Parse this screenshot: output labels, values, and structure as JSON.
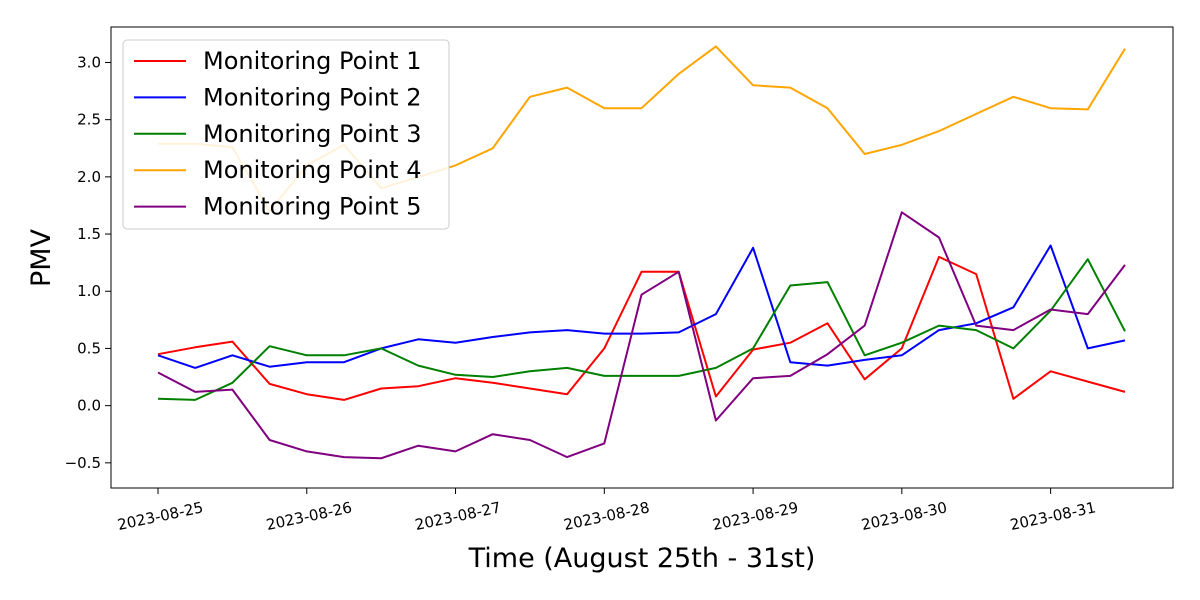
{
  "chart_data": {
    "type": "line",
    "title": "",
    "xlabel": "Time (August 25th - 31st)",
    "ylabel": "PMV",
    "x_start": "2023-08-25",
    "x_end": "2023-08-31 12:00",
    "x_ticks": [
      "2023-08-25",
      "2023-08-26",
      "2023-08-27",
      "2023-08-28",
      "2023-08-29",
      "2023-08-30",
      "2023-08-31"
    ],
    "ylim": [
      -0.72,
      3.31
    ],
    "y_ticks": [
      "−0.5",
      "0.0",
      "0.5",
      "1.0",
      "1.5",
      "2.0",
      "2.5",
      "3.0"
    ],
    "grid": false,
    "legend_position": "upper-left",
    "x": [
      "2023-08-25 00:00",
      "2023-08-25 06:00",
      "2023-08-25 12:00",
      "2023-08-25 18:00",
      "2023-08-26 00:00",
      "2023-08-26 06:00",
      "2023-08-26 12:00",
      "2023-08-26 18:00",
      "2023-08-27 00:00",
      "2023-08-27 06:00",
      "2023-08-27 12:00",
      "2023-08-27 18:00",
      "2023-08-28 00:00",
      "2023-08-28 06:00",
      "2023-08-28 12:00",
      "2023-08-28 18:00",
      "2023-08-29 00:00",
      "2023-08-29 06:00",
      "2023-08-29 12:00",
      "2023-08-29 18:00",
      "2023-08-30 00:00",
      "2023-08-30 06:00",
      "2023-08-30 12:00",
      "2023-08-30 18:00",
      "2023-08-31 00:00",
      "2023-08-31 06:00",
      "2023-08-31 12:00"
    ],
    "series": [
      {
        "name": "Monitoring Point 1",
        "color": "#ff0000",
        "values": [
          0.45,
          0.51,
          0.56,
          0.19,
          0.1,
          0.05,
          0.15,
          0.17,
          0.24,
          0.2,
          0.15,
          0.1,
          0.5,
          1.17,
          1.17,
          0.08,
          0.49,
          0.55,
          0.72,
          0.23,
          0.5,
          1.3,
          1.15,
          0.06,
          0.3,
          0.21,
          0.12
        ]
      },
      {
        "name": "Monitoring Point 2",
        "color": "#0000ff",
        "values": [
          0.44,
          0.33,
          0.44,
          0.34,
          0.38,
          0.38,
          0.5,
          0.58,
          0.55,
          0.6,
          0.64,
          0.66,
          0.63,
          0.63,
          0.64,
          0.8,
          1.38,
          0.38,
          0.35,
          0.4,
          0.44,
          0.66,
          0.72,
          0.86,
          1.4,
          0.5,
          0.57
        ]
      },
      {
        "name": "Monitoring Point 3",
        "color": "#008000",
        "values": [
          0.06,
          0.05,
          0.2,
          0.52,
          0.44,
          0.44,
          0.5,
          0.35,
          0.27,
          0.25,
          0.3,
          0.33,
          0.26,
          0.26,
          0.26,
          0.33,
          0.5,
          1.05,
          1.08,
          0.44,
          0.55,
          0.7,
          0.66,
          0.5,
          0.83,
          1.28,
          0.65
        ]
      },
      {
        "name": "Monitoring Point 4",
        "color": "#ffa500",
        "values": [
          2.29,
          2.29,
          2.26,
          1.7,
          2.1,
          2.28,
          1.9,
          2.0,
          2.1,
          2.25,
          2.7,
          2.78,
          2.6,
          2.6,
          2.9,
          3.14,
          2.8,
          2.78,
          2.6,
          2.2,
          2.28,
          2.4,
          2.55,
          2.7,
          2.6,
          2.59,
          3.12
        ]
      },
      {
        "name": "Monitoring Point 5",
        "color": "#800080",
        "values": [
          0.29,
          0.12,
          0.14,
          -0.3,
          -0.4,
          -0.45,
          -0.46,
          -0.35,
          -0.4,
          -0.25,
          -0.3,
          -0.45,
          -0.33,
          0.97,
          1.17,
          -0.13,
          0.24,
          0.26,
          0.45,
          0.7,
          1.69,
          1.47,
          0.7,
          0.66,
          0.84,
          0.8,
          1.23
        ]
      }
    ]
  }
}
